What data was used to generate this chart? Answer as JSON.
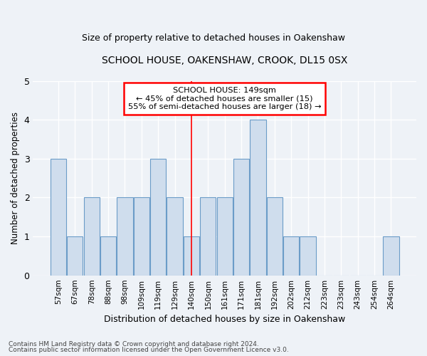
{
  "title": "SCHOOL HOUSE, OAKENSHAW, CROOK, DL15 0SX",
  "subtitle": "Size of property relative to detached houses in Oakenshaw",
  "xlabel": "Distribution of detached houses by size in Oakenshaw",
  "ylabel": "Number of detached properties",
  "categories": [
    "57sqm",
    "67sqm",
    "78sqm",
    "88sqm",
    "98sqm",
    "109sqm",
    "119sqm",
    "129sqm",
    "140sqm",
    "150sqm",
    "161sqm",
    "171sqm",
    "181sqm",
    "192sqm",
    "202sqm",
    "212sqm",
    "223sqm",
    "233sqm",
    "243sqm",
    "254sqm",
    "264sqm"
  ],
  "values": [
    3,
    1,
    2,
    1,
    2,
    2,
    3,
    2,
    1,
    2,
    2,
    3,
    4,
    2,
    1,
    1,
    0,
    0,
    0,
    0,
    1
  ],
  "bar_color": "#cfdded",
  "bar_edge_color": "#6b9cc8",
  "highlight_line_index": 8,
  "annotation_title": "SCHOOL HOUSE: 149sqm",
  "annotation_line1": "← 45% of detached houses are smaller (15)",
  "annotation_line2": "55% of semi-detached houses are larger (18) →",
  "ylim": [
    0,
    5
  ],
  "yticks": [
    0,
    1,
    2,
    3,
    4,
    5
  ],
  "background_color": "#eef2f7",
  "grid_color": "#ffffff",
  "footer_line1": "Contains HM Land Registry data © Crown copyright and database right 2024.",
  "footer_line2": "Contains public sector information licensed under the Open Government Licence v3.0."
}
